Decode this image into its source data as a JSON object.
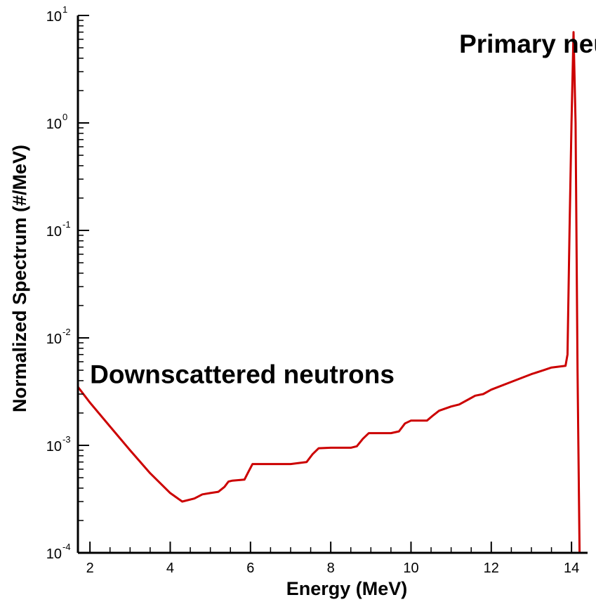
{
  "chart_data": {
    "type": "line",
    "xlabel": "Energy (MeV)",
    "ylabel": "Normalized Spectrum (#/MeV)",
    "xlim": [
      1.7,
      14.4
    ],
    "ylim": [
      0.0001,
      10
    ],
    "yscale": "log",
    "grid": false,
    "x_ticks": [
      2,
      4,
      6,
      8,
      10,
      12,
      14
    ],
    "y_ticks": [
      {
        "base": "10",
        "exp": "-4",
        "value": 0.0001
      },
      {
        "base": "10",
        "exp": "-3",
        "value": 0.001
      },
      {
        "base": "10",
        "exp": "-2",
        "value": 0.01
      },
      {
        "base": "10",
        "exp": "-1",
        "value": 0.1
      },
      {
        "base": "10",
        "exp": "0",
        "value": 1
      },
      {
        "base": "10",
        "exp": "1",
        "value": 10
      }
    ],
    "annotations": [
      {
        "text": "Primary neutrons",
        "x": 11.2,
        "y": 4.5
      },
      {
        "text": "Downscattered neutrons",
        "x": 2.0,
        "y": 0.0038
      }
    ],
    "series": [
      {
        "color": "#cc0000",
        "x": [
          1.7,
          2.0,
          2.5,
          3.0,
          3.5,
          4.0,
          4.3,
          4.6,
          4.8,
          5.0,
          5.2,
          5.35,
          5.45,
          5.55,
          5.85,
          5.95,
          6.05,
          6.5,
          7.0,
          7.4,
          7.55,
          7.7,
          8.0,
          8.5,
          8.65,
          8.8,
          8.95,
          9.5,
          9.7,
          9.85,
          10.0,
          10.4,
          10.55,
          10.7,
          11.0,
          11.2,
          11.45,
          11.6,
          11.8,
          12.0,
          12.5,
          13.0,
          13.3,
          13.5,
          13.85,
          13.9,
          13.95,
          14.0,
          14.05,
          14.1,
          14.15,
          14.2
        ],
        "y": [
          0.0035,
          0.0025,
          0.0015,
          0.0009,
          0.00055,
          0.00036,
          0.0003,
          0.00032,
          0.00035,
          0.00036,
          0.00037,
          0.00041,
          0.00046,
          0.00047,
          0.00048,
          0.00057,
          0.00067,
          0.00067,
          0.00067,
          0.0007,
          0.00083,
          0.00094,
          0.00095,
          0.00095,
          0.00098,
          0.00115,
          0.0013,
          0.0013,
          0.00135,
          0.0016,
          0.0017,
          0.0017,
          0.0019,
          0.0021,
          0.0023,
          0.0024,
          0.0027,
          0.0029,
          0.003,
          0.0033,
          0.0039,
          0.0046,
          0.005,
          0.0053,
          0.0055,
          0.007,
          0.1,
          1.0,
          7.0,
          1.0,
          0.005,
          0.0001
        ]
      }
    ]
  }
}
